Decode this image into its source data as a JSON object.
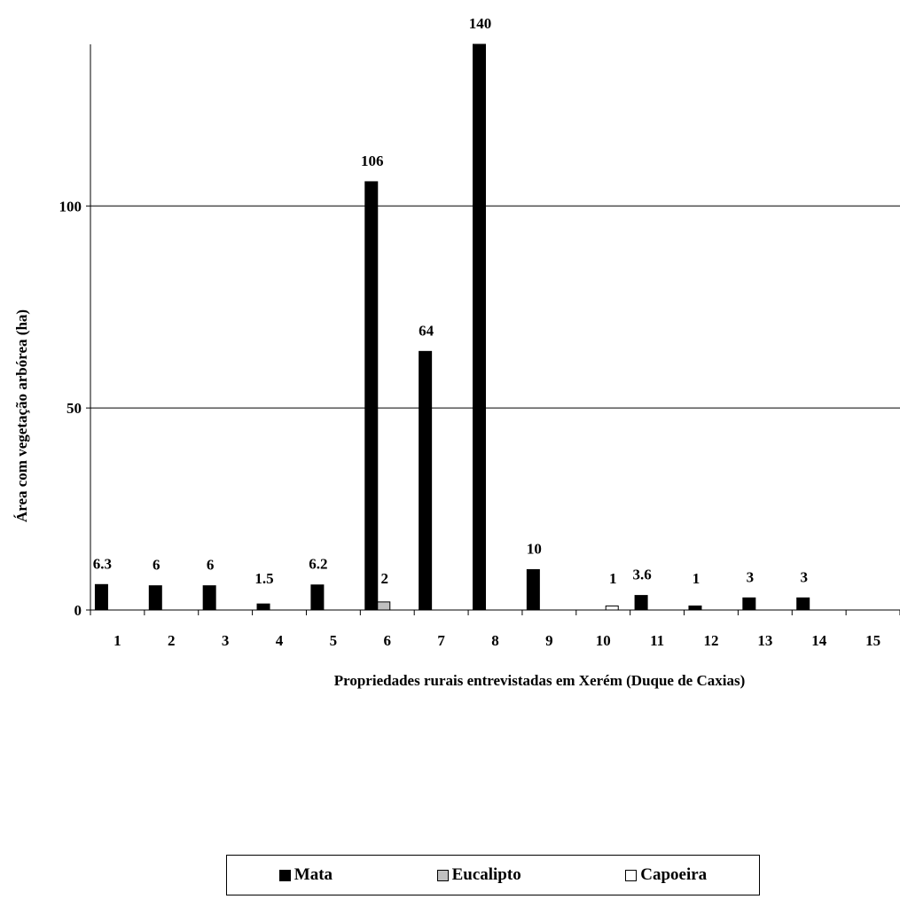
{
  "chart_data": {
    "type": "bar",
    "title": "",
    "xlabel": "Propriedades rurais entrevistadas em Xerém (Duque de Caxias)",
    "ylabel": "Área com vegetação arbórea (ha)",
    "ylim": [
      0,
      140
    ],
    "yticks": [
      0,
      50,
      100
    ],
    "grid": true,
    "legend_position": "bottom",
    "categories": [
      "1",
      "2",
      "3",
      "4",
      "5",
      "6",
      "7",
      "8",
      "9",
      "10",
      "11",
      "12",
      "13",
      "14",
      "15"
    ],
    "series": [
      {
        "name": "Mata",
        "color": "#000000",
        "values": [
          6.3,
          6,
          6,
          1.5,
          6.2,
          106,
          64,
          140,
          10,
          0,
          3.6,
          1,
          3,
          3,
          0
        ],
        "labels": [
          "6.3",
          "6",
          "6",
          "1.5",
          "6.2",
          "106",
          "64",
          "140",
          "10",
          "",
          "3.6",
          "1",
          "3",
          "3",
          ""
        ]
      },
      {
        "name": "Eucalipto",
        "color": "#c0c0c0",
        "values": [
          0,
          0,
          0,
          0,
          0,
          2,
          0,
          0,
          0,
          0,
          0,
          0,
          0,
          0,
          0
        ],
        "labels": [
          "",
          "",
          "",
          "",
          "",
          "2",
          "",
          "",
          "",
          "",
          "",
          "",
          "",
          "",
          ""
        ]
      },
      {
        "name": "Capoeira",
        "color": "#ffffff",
        "values": [
          0,
          0,
          0,
          0,
          0,
          0,
          0,
          0,
          0,
          1,
          0,
          0,
          0,
          0,
          0
        ],
        "labels": [
          "",
          "",
          "",
          "",
          "",
          "",
          "",
          "",
          "",
          "1",
          "",
          "",
          "",
          "",
          ""
        ]
      }
    ]
  }
}
